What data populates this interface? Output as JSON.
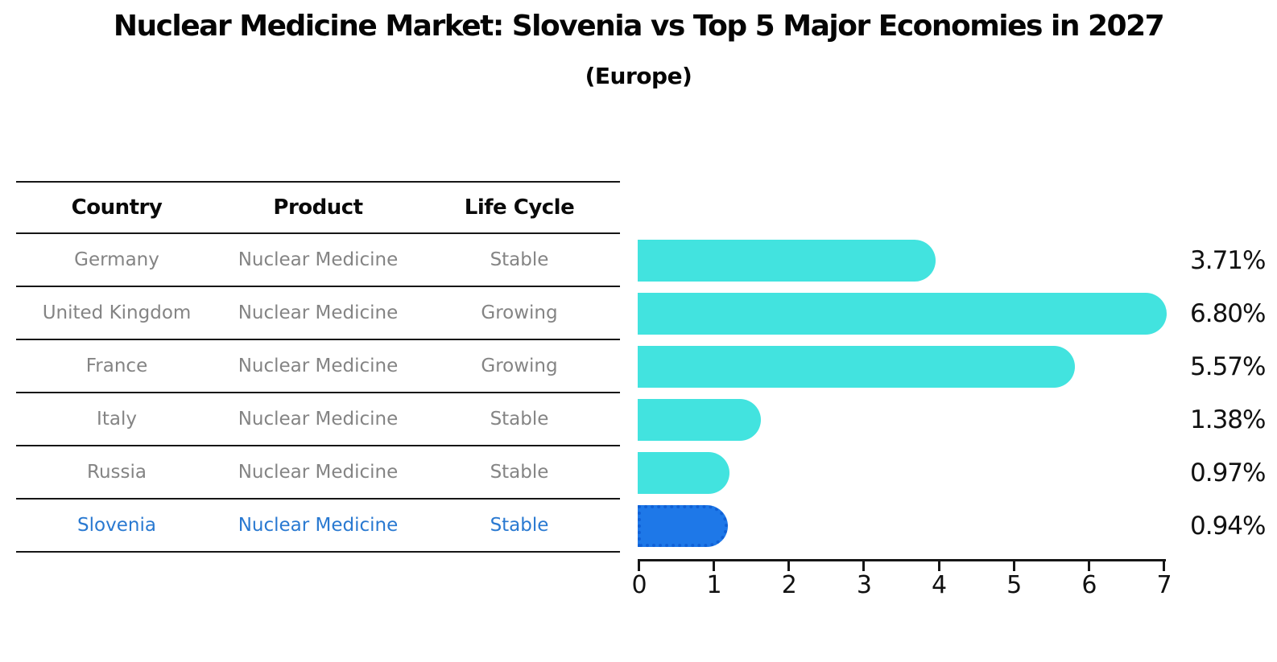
{
  "title": "Nuclear Medicine Market: Slovenia vs Top 5 Major Economies in 2027",
  "subtitle": "(Europe)",
  "table": {
    "headers": [
      "Country",
      "Product",
      "Life Cycle"
    ],
    "rows": [
      {
        "country": "Germany",
        "product": "Nuclear Medicine",
        "life_cycle": "Stable",
        "highlight": false
      },
      {
        "country": "United Kingdom",
        "product": "Nuclear Medicine",
        "life_cycle": "Growing",
        "highlight": false
      },
      {
        "country": "France",
        "product": "Nuclear Medicine",
        "life_cycle": "Growing",
        "highlight": false
      },
      {
        "country": "Italy",
        "product": "Nuclear Medicine",
        "life_cycle": "Stable",
        "highlight": false
      },
      {
        "country": "Russia",
        "product": "Nuclear Medicine",
        "life_cycle": "Stable",
        "highlight": false
      },
      {
        "country": "Slovenia",
        "product": "Nuclear Medicine",
        "life_cycle": "Stable",
        "highlight": true
      }
    ]
  },
  "chart_data": {
    "type": "bar",
    "orientation": "horizontal",
    "title": "Nuclear Medicine Market: Slovenia vs Top 5 Major Economies in 2027 (Europe)",
    "categories": [
      "Germany",
      "United Kingdom",
      "France",
      "Italy",
      "Russia",
      "Slovenia"
    ],
    "values": [
      3.71,
      6.8,
      5.57,
      1.38,
      0.97,
      0.94
    ],
    "value_labels": [
      "3.71%",
      "6.80%",
      "5.57%",
      "1.38%",
      "0.97%",
      "0.94%"
    ],
    "xlabel": "",
    "ylabel": "",
    "xlim": [
      0,
      7
    ],
    "xticks": [
      "0",
      "1",
      "2",
      "3",
      "4",
      "5",
      "6",
      "7"
    ],
    "grid": false,
    "legend": false,
    "highlight_index": 5
  },
  "colors": {
    "bar": "#42e3df",
    "highlight_bar": "#1e78e8",
    "highlight_border": "#1061d6",
    "highlight_text": "#2979d1",
    "table_text": "#848484",
    "line": "#161616"
  }
}
